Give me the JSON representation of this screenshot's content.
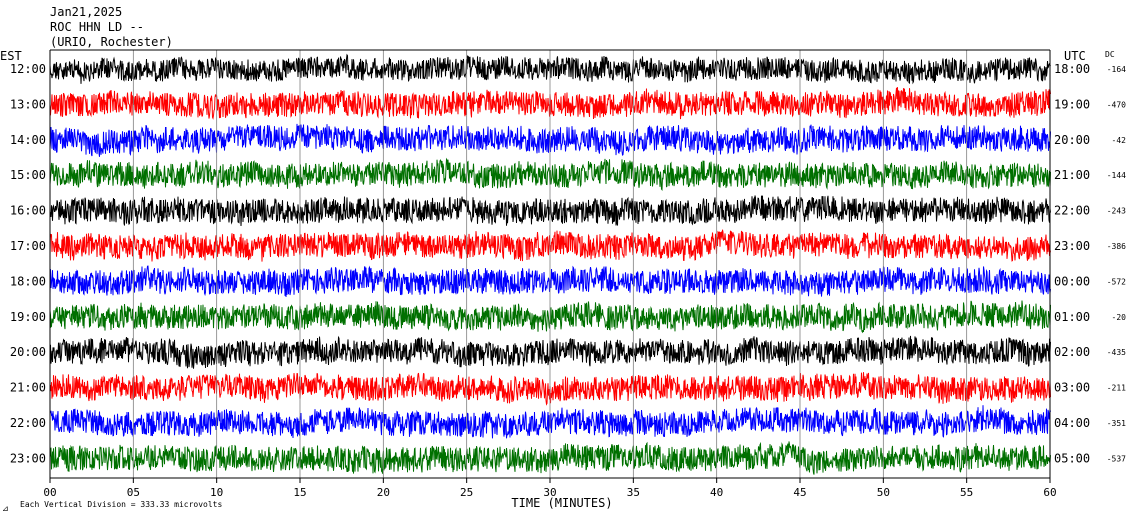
{
  "header": {
    "date": "Jan21,2025",
    "station": "ROC HHN LD --",
    "location": "(URIO, Rochester)"
  },
  "chart_data": {
    "type": "line",
    "title": "",
    "left_axis_label": "EST",
    "right_axis_label": "UTC",
    "dc_label": "DC",
    "xlabel": "TIME (MINUTES)",
    "xlim": [
      0,
      60
    ],
    "x_ticks": [
      "00",
      "05",
      "10",
      "15",
      "20",
      "25",
      "30",
      "35",
      "40",
      "45",
      "50",
      "55",
      "60"
    ],
    "rows": [
      {
        "est": "12:00",
        "utc": "18:00",
        "dc": "-164",
        "color": "#000000"
      },
      {
        "est": "13:00",
        "utc": "19:00",
        "dc": "-470",
        "color": "#ff0000"
      },
      {
        "est": "14:00",
        "utc": "20:00",
        "dc": "-42",
        "color": "#0000ff"
      },
      {
        "est": "15:00",
        "utc": "21:00",
        "dc": "-144",
        "color": "#007000"
      },
      {
        "est": "16:00",
        "utc": "22:00",
        "dc": "-243",
        "color": "#000000"
      },
      {
        "est": "17:00",
        "utc": "23:00",
        "dc": "-386",
        "color": "#ff0000"
      },
      {
        "est": "18:00",
        "utc": "00:00",
        "dc": "-572",
        "color": "#0000ff"
      },
      {
        "est": "19:00",
        "utc": "01:00",
        "dc": "-20",
        "color": "#007000"
      },
      {
        "est": "20:00",
        "utc": "02:00",
        "dc": "-435",
        "color": "#000000"
      },
      {
        "est": "21:00",
        "utc": "03:00",
        "dc": "-211",
        "color": "#ff0000"
      },
      {
        "est": "22:00",
        "utc": "04:00",
        "dc": "-351",
        "color": "#0000ff"
      },
      {
        "est": "23:00",
        "utc": "05:00",
        "dc": "-537",
        "color": "#007000"
      }
    ],
    "footer_note": "Each Vertical Division =  333.33 microvolts",
    "grid": true
  }
}
